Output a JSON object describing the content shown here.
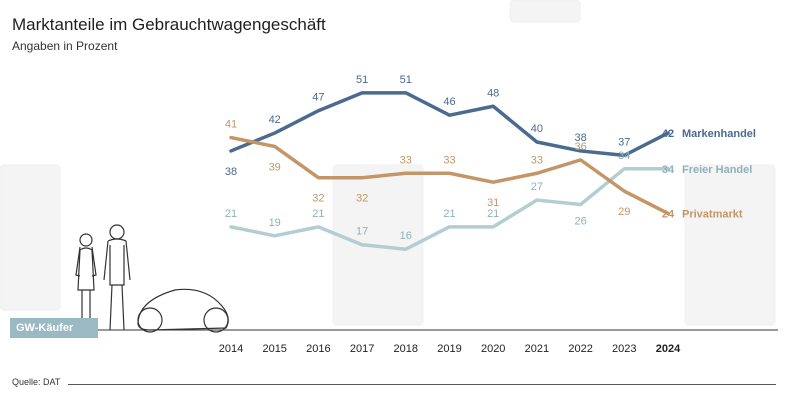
{
  "header": {
    "title": "Marktanteile im Gebrauchtwagengeschäft",
    "subtitle": "Angaben in Prozent"
  },
  "badge": {
    "label": "GW-Käufer"
  },
  "source": {
    "label": "Quelle: DAT"
  },
  "icons": [
    "dat-watermark-icon",
    "couple-illustration-icon",
    "car-illustration-icon"
  ],
  "colors": {
    "markenhandel": "#4a6a8f",
    "freier_handel": "#b2cdd3",
    "privatmarkt": "#c49566",
    "axis": "#333333"
  },
  "chart_data": {
    "type": "line",
    "title": "Marktanteile im Gebrauchtwagengeschäft",
    "subtitle": "Angaben in Prozent",
    "x": [
      "2014",
      "2015",
      "2016",
      "2017",
      "2018",
      "2019",
      "2020",
      "2021",
      "2022",
      "2023",
      "2024"
    ],
    "ylim": [
      10,
      55
    ],
    "grid": false,
    "legend": "inline-right",
    "series": [
      {
        "name": "Markenhandel",
        "key": "markenhandel",
        "values": [
          38,
          42,
          47,
          51,
          51,
          46,
          48,
          40,
          38,
          37,
          42
        ]
      },
      {
        "name": "Freier Handel",
        "key": "freier_handel",
        "values": [
          21,
          19,
          21,
          17,
          16,
          21,
          21,
          27,
          26,
          34,
          34
        ]
      },
      {
        "name": "Privatmarkt",
        "key": "privatmarkt",
        "values": [
          41,
          39,
          32,
          32,
          33,
          33,
          31,
          33,
          36,
          29,
          24
        ]
      }
    ]
  }
}
